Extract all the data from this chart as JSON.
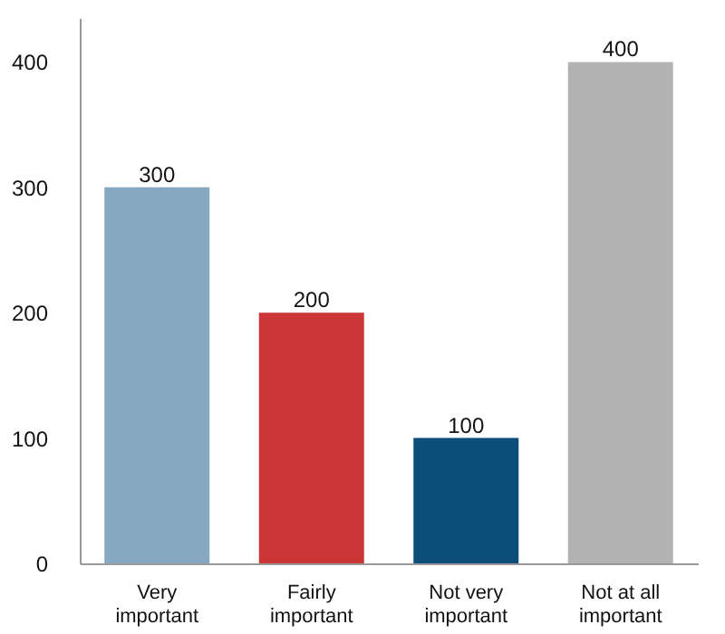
{
  "chart_data": {
    "type": "bar",
    "categories": [
      "Very important",
      "Fairly important",
      "Not very important",
      "Not at all important"
    ],
    "values": [
      300,
      200,
      100,
      400
    ],
    "colors": [
      "#86a8c0",
      "#cc3636",
      "#0d4d7a",
      "#b3b3b3"
    ],
    "ylim": [
      0,
      435
    ],
    "yticks": [
      0,
      100,
      200,
      300,
      400
    ],
    "grid": false,
    "data_labels": true
  }
}
